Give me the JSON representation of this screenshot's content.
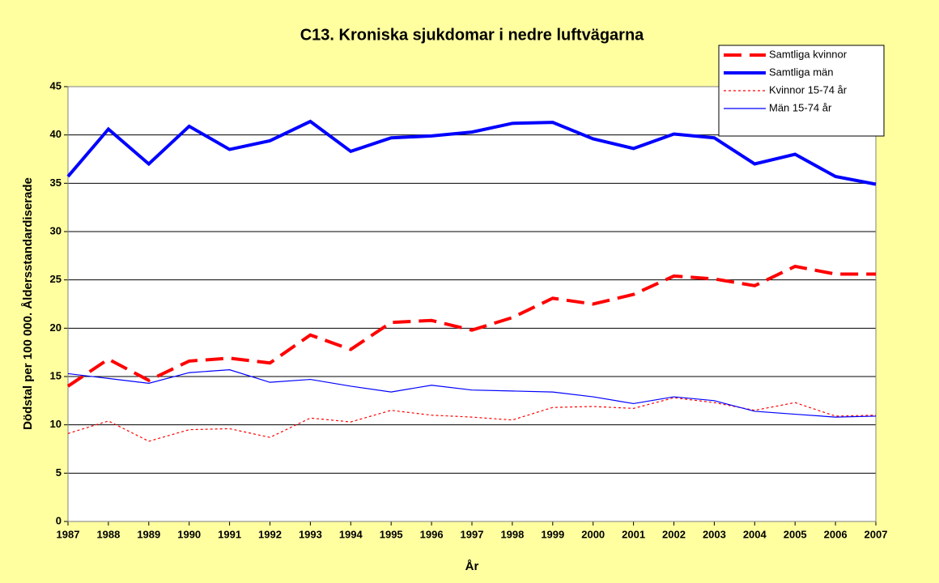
{
  "chart_data": {
    "type": "line",
    "title": "C13. Kroniska sjukdomar i nedre luftvägarna",
    "x_label": "År",
    "y_label": "Dödstal per 100 000. Åldersstandardiserade",
    "categories": [
      "1987",
      "1988",
      "1989",
      "1990",
      "1991",
      "1992",
      "1993",
      "1994",
      "1995",
      "1996",
      "1997",
      "1998",
      "1999",
      "2000",
      "2001",
      "2002",
      "2003",
      "2004",
      "2005",
      "2006",
      "2007"
    ],
    "ylim": [
      0,
      45
    ],
    "yticks": [
      0,
      5,
      10,
      15,
      20,
      25,
      30,
      35,
      40,
      45
    ],
    "grid": true,
    "legend": "top-right",
    "series": [
      {
        "name": "Samtliga kvinnor",
        "color": "#ff0000",
        "style": "dashed",
        "width": "thick",
        "values": [
          14.0,
          16.8,
          14.6,
          16.6,
          16.9,
          16.4,
          19.3,
          17.8,
          20.6,
          20.8,
          19.8,
          21.1,
          23.1,
          22.5,
          23.5,
          25.4,
          25.1,
          24.4,
          26.4,
          25.6,
          25.6
        ]
      },
      {
        "name": "Samtliga män",
        "color": "#0000ff",
        "style": "solid",
        "width": "thick",
        "values": [
          35.7,
          40.6,
          37.0,
          40.9,
          38.5,
          39.4,
          41.4,
          38.3,
          39.7,
          39.9,
          40.3,
          41.2,
          41.3,
          39.6,
          38.6,
          40.1,
          39.7,
          37.0,
          38.0,
          35.7,
          34.9
        ]
      },
      {
        "name": "Kvinnor 15-74 år",
        "color": "#ff0000",
        "style": "dotted",
        "width": "thin",
        "values": [
          9.1,
          10.4,
          8.3,
          9.5,
          9.6,
          8.7,
          10.7,
          10.3,
          11.5,
          11.0,
          10.8,
          10.5,
          11.8,
          11.9,
          11.7,
          12.8,
          12.3,
          11.5,
          12.3,
          10.9,
          11.0
        ]
      },
      {
        "name": "Män 15-74 år",
        "color": "#0000ff",
        "style": "solid",
        "width": "thin",
        "values": [
          15.3,
          14.8,
          14.3,
          15.4,
          15.7,
          14.4,
          14.7,
          14.0,
          13.4,
          14.1,
          13.6,
          13.5,
          13.4,
          12.9,
          12.2,
          12.9,
          12.5,
          11.4,
          11.1,
          10.8,
          10.9
        ]
      }
    ]
  }
}
